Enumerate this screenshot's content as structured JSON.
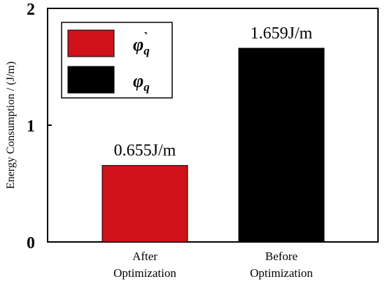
{
  "chart_data": {
    "type": "bar",
    "title": "",
    "xlabel": "",
    "ylabel": "Energy Consumption / (J/m)",
    "ylim": [
      0,
      2
    ],
    "yticks": [
      0,
      1,
      2
    ],
    "grid": false,
    "legend_position": "top-left",
    "categories": [
      "After Optimization",
      "Before Optimization"
    ],
    "category_lines": [
      [
        "After",
        "Optimization"
      ],
      [
        "Before",
        "Optimization"
      ]
    ],
    "values": [
      0.655,
      1.659
    ],
    "data_labels": [
      "0.655J/m",
      "1.659J/m"
    ],
    "colors": [
      "#d0121b",
      "#000000"
    ],
    "legend": [
      {
        "symbol": "φ",
        "sub": "q",
        "accent": "`",
        "color": "#d0121b"
      },
      {
        "symbol": "φ",
        "sub": "q",
        "accent": "",
        "color": "#000000"
      }
    ]
  }
}
